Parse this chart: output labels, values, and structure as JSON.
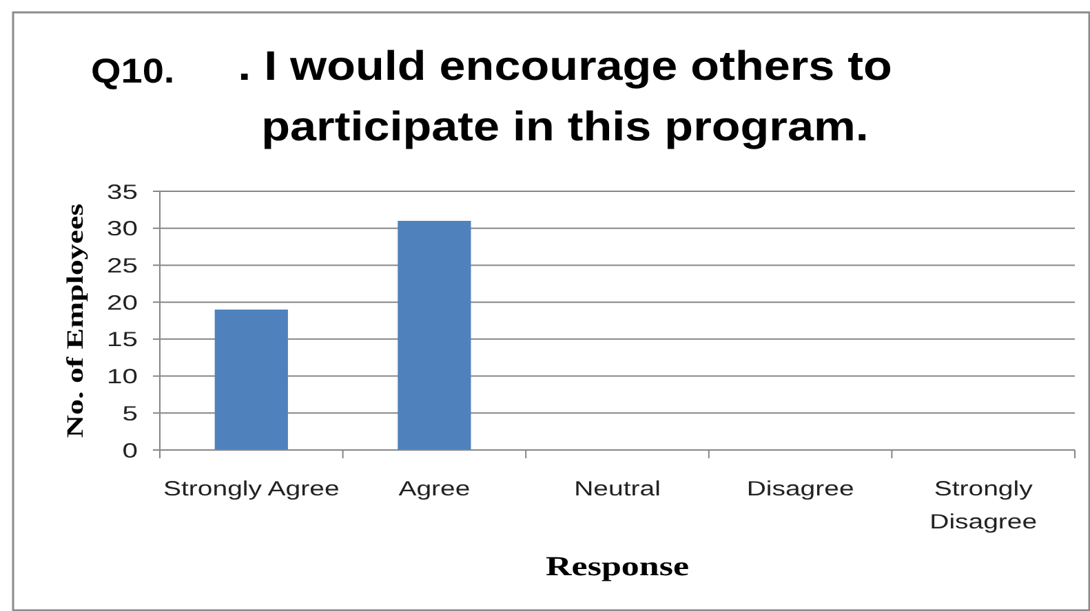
{
  "chart_data": {
    "type": "bar",
    "title": "Q10. . I would encourage others to participate in this program.",
    "xlabel": "Response",
    "ylabel": "No. of Employees",
    "categories": [
      "Strongly Agree",
      "Agree",
      "Neutral",
      "Disagree",
      "Strongly Disagree"
    ],
    "values": [
      19,
      31,
      0,
      0,
      0
    ],
    "color": "#4f81bd",
    "ylim": [
      0,
      35
    ],
    "yticks": [
      0,
      5,
      10,
      15,
      20,
      25,
      30,
      35
    ],
    "grid": "y"
  }
}
